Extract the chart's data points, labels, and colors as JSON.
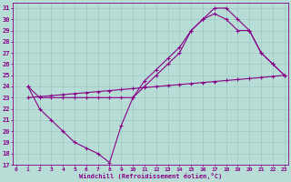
{
  "xlabel": "Windchill (Refroidissement éolien,°C)",
  "bg_color": "#b8ddd6",
  "line_color": "#880088",
  "grid_color": "#9ecec6",
  "ylim": [
    17,
    31.5
  ],
  "xlim": [
    -0.3,
    23.3
  ],
  "yticks": [
    17,
    18,
    19,
    20,
    21,
    22,
    23,
    24,
    25,
    26,
    27,
    28,
    29,
    30,
    31
  ],
  "xticks": [
    0,
    1,
    2,
    3,
    4,
    5,
    6,
    7,
    8,
    9,
    10,
    11,
    12,
    13,
    14,
    15,
    16,
    17,
    18,
    19,
    20,
    21,
    22,
    23
  ],
  "line1_x": [
    1,
    2,
    3,
    4,
    5,
    6,
    7,
    8,
    9,
    10,
    11,
    12,
    13,
    14,
    15,
    16,
    17,
    18,
    19,
    20,
    21,
    22,
    23
  ],
  "line1_y": [
    24,
    23,
    23,
    23,
    23,
    23,
    23,
    23,
    23,
    23,
    24,
    25,
    26,
    27,
    29,
    30,
    31,
    31,
    30,
    29,
    27,
    26,
    25
  ],
  "line2_x": [
    1,
    2,
    3,
    4,
    5,
    6,
    7,
    8,
    9,
    10,
    11,
    12,
    13,
    14,
    15,
    16,
    17,
    18,
    19,
    20,
    21,
    22,
    23
  ],
  "line2_y": [
    24,
    22,
    21,
    20,
    19,
    18.5,
    18,
    17.2,
    20.5,
    23,
    24.5,
    25.5,
    26.5,
    27.5,
    29,
    30,
    30.5,
    30,
    29,
    29,
    27,
    26,
    25
  ],
  "line3_x": [
    1,
    2,
    3,
    4,
    5,
    6,
    7,
    8,
    9,
    10,
    11,
    12,
    13,
    14,
    15,
    16,
    17,
    18,
    19,
    20,
    21,
    22,
    23
  ],
  "line3_y": [
    23,
    23.09,
    23.18,
    23.27,
    23.36,
    23.45,
    23.54,
    23.63,
    23.72,
    23.81,
    23.9,
    23.99,
    24.08,
    24.17,
    24.26,
    24.35,
    24.44,
    24.53,
    24.62,
    24.71,
    24.8,
    24.9,
    25.0
  ]
}
